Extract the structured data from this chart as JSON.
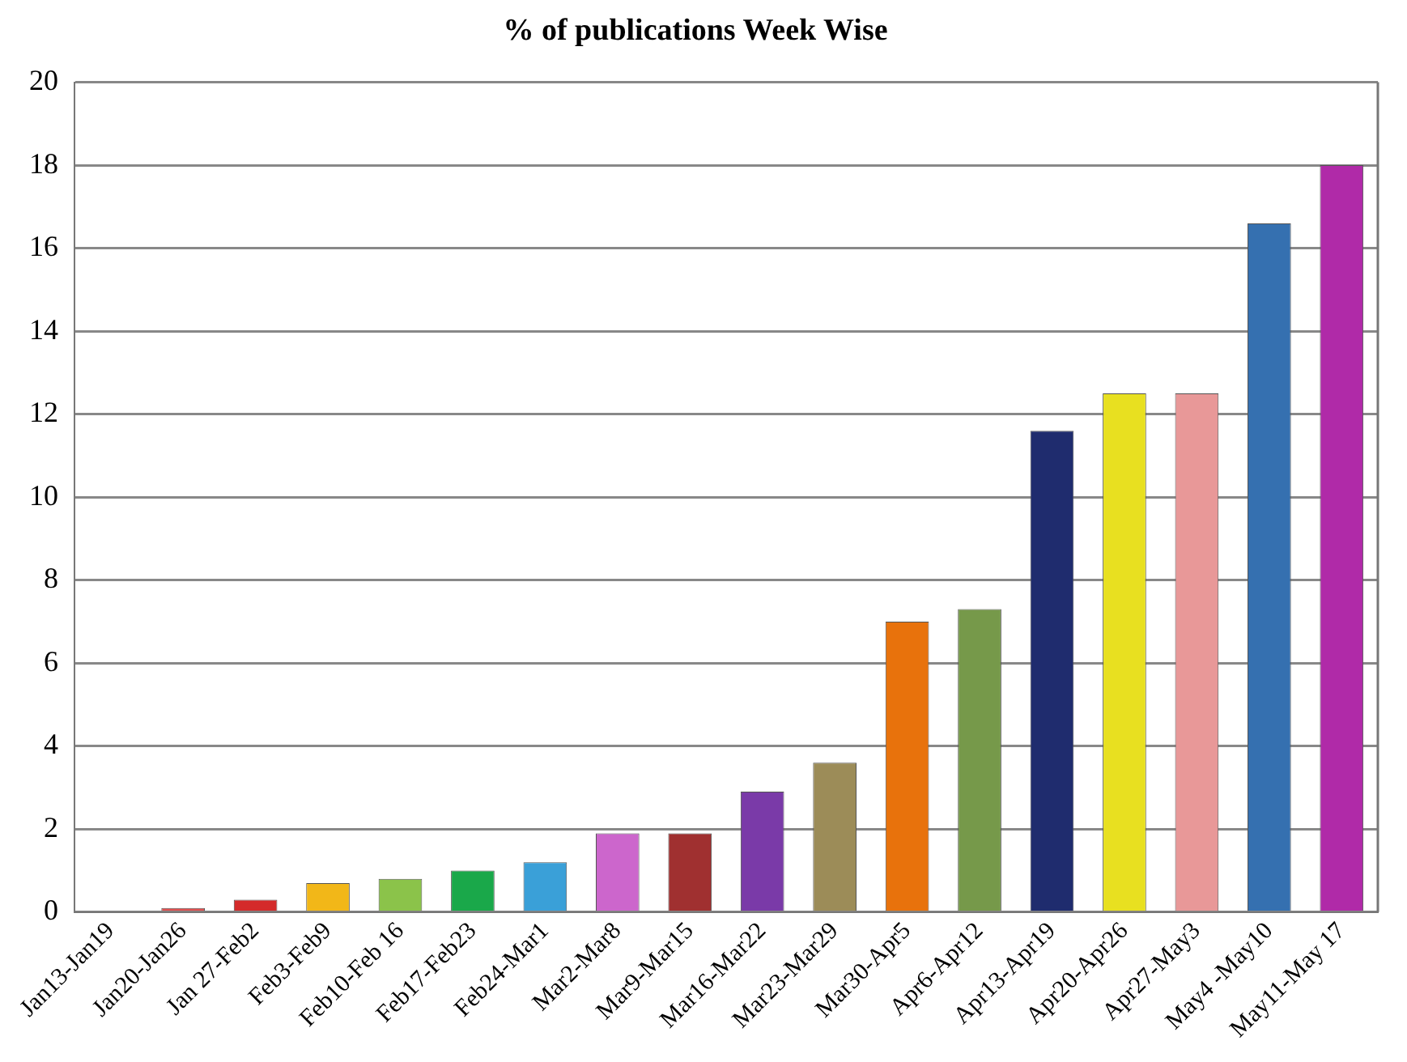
{
  "chart_data": {
    "type": "bar",
    "title": "% of publications Week Wise",
    "categories": [
      "Jan13-Jan19",
      "Jan20-Jan26",
      "Jan 27-Feb2",
      "Feb3-Feb9",
      "Feb10-Feb 16",
      "Feb17-Feb23",
      "Feb24-Mar1",
      "Mar2-Mar8",
      "Mar9-Mar15",
      "Mar16-Mar22",
      "Mar23-Mar29",
      "Mar30-Apr5",
      "Apr6-Apr12",
      "Apr13-Apr19",
      "Apr20-Apr26",
      "Apr27-May3",
      "May4 -May10",
      "May11-May 17"
    ],
    "values": [
      0,
      0.1,
      0.3,
      0.7,
      0.8,
      1.0,
      1.2,
      1.9,
      1.9,
      2.9,
      3.6,
      7.0,
      7.3,
      11.6,
      12.5,
      12.5,
      16.6,
      18.0
    ],
    "colors": [
      "#e05050",
      "#e05050",
      "#d42a2a",
      "#f2b718",
      "#8bc34a",
      "#1aa84a",
      "#3aa0d8",
      "#cc66cc",
      "#a03030",
      "#7a3aa8",
      "#9c8c58",
      "#e8720c",
      "#76994a",
      "#1f2c6e",
      "#e8e020",
      "#e89898",
      "#3570b0",
      "#b02aa8"
    ],
    "ylim": [
      0,
      20
    ],
    "yticks": [
      0,
      2,
      4,
      6,
      8,
      10,
      12,
      14,
      16,
      18,
      20
    ],
    "grid": "y",
    "legend": false
  }
}
